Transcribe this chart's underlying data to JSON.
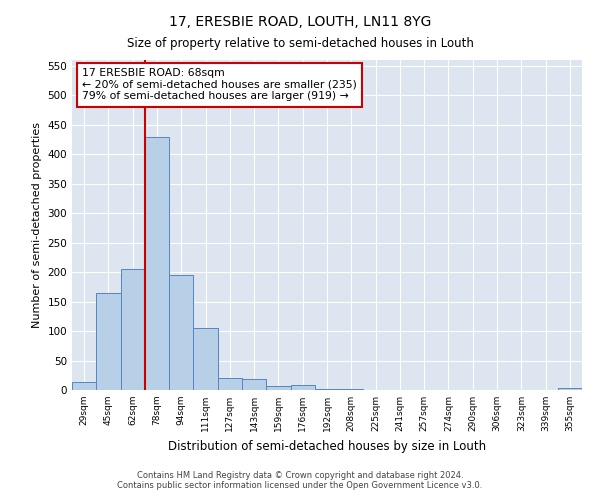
{
  "title": "17, ERESBIE ROAD, LOUTH, LN11 8YG",
  "subtitle": "Size of property relative to semi-detached houses in Louth",
  "xlabel": "Distribution of semi-detached houses by size in Louth",
  "ylabel": "Number of semi-detached properties",
  "bar_labels": [
    "29sqm",
    "45sqm",
    "62sqm",
    "78sqm",
    "94sqm",
    "111sqm",
    "127sqm",
    "143sqm",
    "159sqm",
    "176sqm",
    "192sqm",
    "208sqm",
    "225sqm",
    "241sqm",
    "257sqm",
    "274sqm",
    "290sqm",
    "306sqm",
    "323sqm",
    "339sqm",
    "355sqm"
  ],
  "bar_heights": [
    13,
    165,
    205,
    430,
    196,
    106,
    20,
    18,
    6,
    8,
    2,
    1,
    0,
    0,
    0,
    0,
    0,
    0,
    0,
    0,
    4
  ],
  "bar_color": "#b8cfe8",
  "bar_edge_color": "#5585c5",
  "background_color": "#dde6f0",
  "vline_color": "#cc0000",
  "annotation_title": "17 ERESBIE ROAD: 68sqm",
  "annotation_line1": "← 20% of semi-detached houses are smaller (235)",
  "annotation_line2": "79% of semi-detached houses are larger (919) →",
  "annotation_box_color": "#cc0000",
  "ylim": [
    0,
    560
  ],
  "yticks": [
    0,
    50,
    100,
    150,
    200,
    250,
    300,
    350,
    400,
    450,
    500,
    550
  ],
  "footer_line1": "Contains HM Land Registry data © Crown copyright and database right 2024.",
  "footer_line2": "Contains public sector information licensed under the Open Government Licence v3.0."
}
